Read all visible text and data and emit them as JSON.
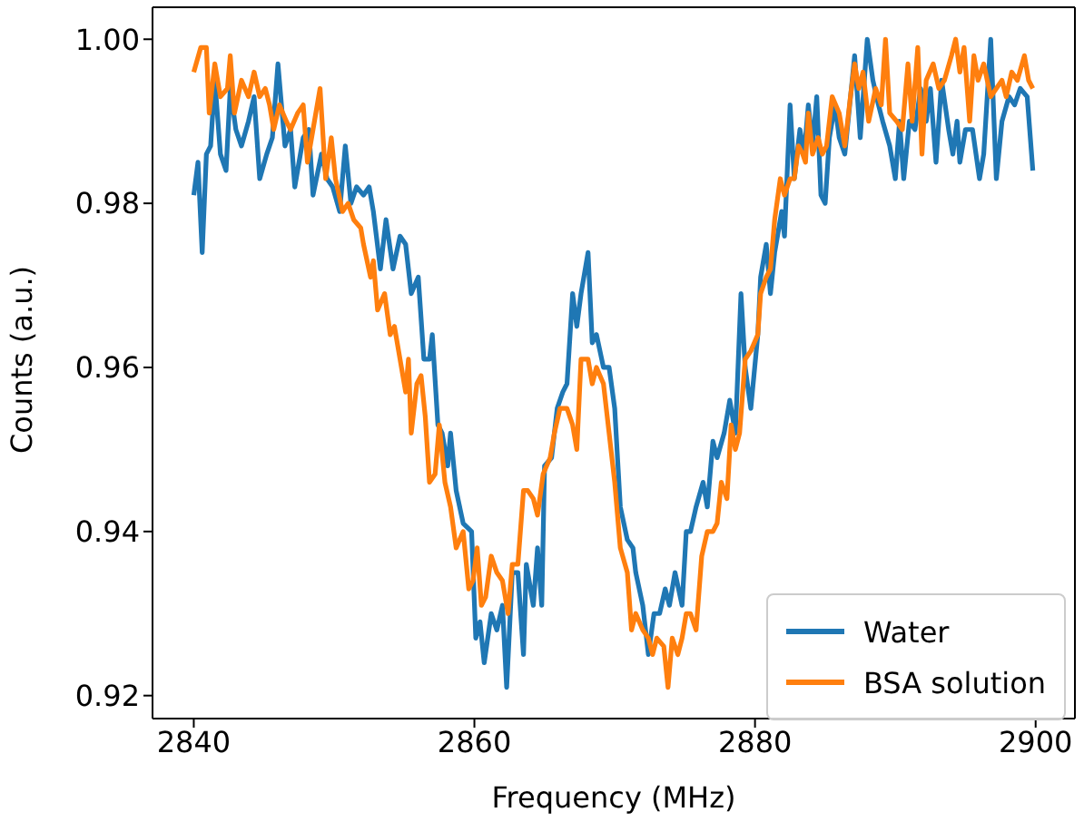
{
  "chart_data": {
    "type": "line",
    "xlabel": "Frequency (MHz)",
    "ylabel": "Counts (a.u.)",
    "xlim": [
      2837.06,
      2902.8
    ],
    "ylim": [
      0.9172,
      1.0039
    ],
    "xticks": [
      2840,
      2860,
      2880,
      2900
    ],
    "yticks": [
      0.92,
      0.94,
      0.96,
      0.98,
      {
        "value": 1,
        "label": "1.00"
      }
    ],
    "legend": "bottom right",
    "line_style": "solid",
    "marker": "none",
    "series": [
      {
        "name": "Water",
        "color": "#1f77b4",
        "x": [
          2840,
          2840.3,
          2840.6,
          2840.9,
          2841.2,
          2841.5,
          2841.9,
          2842.3,
          2842.6,
          2843.0,
          2843.4,
          2843.9,
          2844.3,
          2844.7,
          2845.2,
          2845.6,
          2846.0,
          2846.5,
          2846.9,
          2847.2,
          2847.8,
          2848.2,
          2848.5,
          2849.1,
          2849.5,
          2849.9,
          2850.4,
          2850.8,
          2851.2,
          2851.6,
          2852.1,
          2852.5,
          2852.8,
          2853.3,
          2853.7,
          2854.2,
          2854.7,
          2855.1,
          2855.5,
          2856.0,
          2856.4,
          2856.8,
          2857.0,
          2857.4,
          2857.7,
          2858.1,
          2858.3,
          2858.7,
          2859.2,
          2859.8,
          2860.1,
          2860.4,
          2860.7,
          2861.2,
          2861.6,
          2862.0,
          2862.3,
          2862.7,
          2863.1,
          2863.5,
          2863.7,
          2864.2,
          2864.5,
          2864.8,
          2865.0,
          2865.5,
          2865.9,
          2866.3,
          2866.6,
          2867.0,
          2867.3,
          2867.6,
          2868.1,
          2868.4,
          2868.7,
          2869.2,
          2869.6,
          2870.0,
          2870.4,
          2870.9,
          2871.3,
          2871.5,
          2872.0,
          2872.4,
          2872.8,
          2873.2,
          2873.6,
          2873.9,
          2874.3,
          2874.8,
          2875.1,
          2875.4,
          2875.8,
          2876.3,
          2876.6,
          2877.0,
          2877.3,
          2877.8,
          2878.2,
          2878.6,
          2879.0,
          2879.3,
          2879.7,
          2880.2,
          2880.4,
          2880.8,
          2881.1,
          2881.4,
          2881.9,
          2882.1,
          2882.5,
          2882.8,
          2883.2,
          2883.5,
          2883.8,
          2884.1,
          2884.4,
          2884.7,
          2885.0,
          2885.3,
          2885.7,
          2886.0,
          2886.4,
          2887.1,
          2887.5,
          2888.0,
          2888.4,
          2888.8,
          2889.1,
          2889.6,
          2890.0,
          2890.3,
          2890.6,
          2891.0,
          2891.4,
          2891.8,
          2892.2,
          2892.5,
          2892.9,
          2893.3,
          2893.8,
          2894.1,
          2894.4,
          2894.6,
          2895.0,
          2895.5,
          2896.0,
          2896.3,
          2896.8,
          2897.2,
          2897.6,
          2898.1,
          2898.5,
          2898.9,
          2899.4,
          2899.8
        ],
        "values": [
          0.981,
          0.985,
          0.974,
          0.986,
          0.987,
          0.995,
          0.986,
          0.984,
          0.994,
          0.989,
          0.987,
          0.99,
          0.993,
          0.983,
          0.986,
          0.988,
          0.997,
          0.987,
          0.989,
          0.982,
          0.988,
          0.989,
          0.981,
          0.986,
          0.983,
          0.982,
          0.979,
          0.987,
          0.98,
          0.982,
          0.981,
          0.982,
          0.979,
          0.972,
          0.978,
          0.972,
          0.976,
          0.975,
          0.969,
          0.971,
          0.961,
          0.961,
          0.964,
          0.953,
          0.952,
          0.948,
          0.952,
          0.945,
          0.941,
          0.94,
          0.927,
          0.929,
          0.924,
          0.93,
          0.928,
          0.931,
          0.921,
          0.935,
          0.935,
          0.925,
          0.936,
          0.931,
          0.938,
          0.931,
          0.948,
          0.949,
          0.955,
          0.957,
          0.958,
          0.969,
          0.965,
          0.969,
          0.974,
          0.963,
          0.964,
          0.96,
          0.96,
          0.955,
          0.943,
          0.939,
          0.938,
          0.935,
          0.931,
          0.925,
          0.93,
          0.93,
          0.933,
          0.931,
          0.935,
          0.931,
          0.94,
          0.94,
          0.943,
          0.946,
          0.943,
          0.951,
          0.949,
          0.952,
          0.956,
          0.952,
          0.969,
          0.96,
          0.955,
          0.964,
          0.971,
          0.975,
          0.969,
          0.974,
          0.979,
          0.976,
          0.992,
          0.983,
          0.989,
          0.986,
          0.992,
          0.987,
          0.993,
          0.981,
          0.98,
          0.988,
          0.992,
          0.988,
          0.986,
          0.998,
          0.988,
          1.0,
          0.995,
          0.992,
          0.99,
          0.987,
          0.983,
          0.99,
          0.983,
          0.99,
          0.989,
          0.994,
          0.99,
          0.994,
          0.985,
          0.995,
          0.989,
          0.986,
          0.99,
          0.985,
          0.989,
          0.989,
          0.983,
          0.986,
          1.0,
          0.983,
          0.99,
          0.993,
          0.992,
          0.994,
          0.993,
          0.984
        ]
      },
      {
        "name": "BSA solution",
        "color": "#ff7f0e",
        "x": [
          2840,
          2840.5,
          2840.9,
          2841.1,
          2841.5,
          2841.9,
          2842.4,
          2842.6,
          2842.9,
          2843.4,
          2843.9,
          2844.3,
          2844.7,
          2845.1,
          2845.4,
          2845.7,
          2846.1,
          2846.6,
          2846.9,
          2847.4,
          2847.8,
          2848.1,
          2848.5,
          2849.0,
          2849.4,
          2849.8,
          2850.1,
          2850.6,
          2851.0,
          2851.4,
          2851.9,
          2852.1,
          2852.6,
          2852.8,
          2853.1,
          2853.6,
          2854.0,
          2854.3,
          2854.7,
          2855.1,
          2855.3,
          2855.5,
          2855.9,
          2856.2,
          2856.5,
          2856.8,
          2857.2,
          2857.5,
          2857.9,
          2858.3,
          2858.7,
          2859.2,
          2859.6,
          2859.9,
          2860.2,
          2860.5,
          2860.8,
          2861.2,
          2861.6,
          2862.0,
          2862.4,
          2862.7,
          2863.1,
          2863.5,
          2863.8,
          2864.2,
          2864.5,
          2864.9,
          2865.4,
          2865.7,
          2866.1,
          2866.6,
          2867.0,
          2867.3,
          2867.6,
          2868.1,
          2868.4,
          2868.7,
          2869.2,
          2869.6,
          2870.0,
          2870.4,
          2870.9,
          2871.2,
          2871.5,
          2872.0,
          2872.4,
          2872.7,
          2873.0,
          2873.5,
          2873.8,
          2874.1,
          2874.5,
          2874.8,
          2875.1,
          2875.4,
          2875.8,
          2876.2,
          2876.6,
          2877.0,
          2877.3,
          2877.6,
          2878.0,
          2878.3,
          2878.6,
          2878.9,
          2879.3,
          2879.7,
          2880.2,
          2880.4,
          2880.8,
          2881.1,
          2881.4,
          2881.8,
          2882.1,
          2882.5,
          2882.8,
          2883.1,
          2883.4,
          2883.6,
          2883.8,
          2884.1,
          2884.5,
          2884.8,
          2885.1,
          2885.5,
          2886.0,
          2886.4,
          2886.8,
          2887.1,
          2887.4,
          2887.7,
          2888.1,
          2888.6,
          2889.0,
          2889.3,
          2889.6,
          2890.1,
          2890.5,
          2890.9,
          2891.2,
          2891.6,
          2891.9,
          2892.2,
          2892.7,
          2893.1,
          2893.5,
          2894.0,
          2894.3,
          2894.6,
          2894.9,
          2895.3,
          2895.6,
          2895.9,
          2896.3,
          2896.8,
          2897.2,
          2897.6,
          2897.9,
          2898.3,
          2898.7,
          2899.2,
          2899.5,
          2899.8
        ],
        "values": [
          0.996,
          0.999,
          0.999,
          0.991,
          0.997,
          0.993,
          0.994,
          0.998,
          0.991,
          0.995,
          0.993,
          0.996,
          0.993,
          0.994,
          0.992,
          0.989,
          0.992,
          0.99,
          0.989,
          0.991,
          0.992,
          0.985,
          0.989,
          0.994,
          0.983,
          0.988,
          0.983,
          0.979,
          0.98,
          0.978,
          0.977,
          0.975,
          0.971,
          0.973,
          0.967,
          0.969,
          0.964,
          0.965,
          0.961,
          0.957,
          0.961,
          0.952,
          0.958,
          0.959,
          0.954,
          0.946,
          0.947,
          0.953,
          0.946,
          0.943,
          0.938,
          0.94,
          0.933,
          0.934,
          0.938,
          0.931,
          0.932,
          0.937,
          0.935,
          0.934,
          0.93,
          0.936,
          0.936,
          0.945,
          0.945,
          0.944,
          0.942,
          0.947,
          0.949,
          0.952,
          0.955,
          0.955,
          0.953,
          0.95,
          0.961,
          0.961,
          0.958,
          0.96,
          0.958,
          0.952,
          0.946,
          0.938,
          0.935,
          0.928,
          0.93,
          0.928,
          0.927,
          0.925,
          0.927,
          0.926,
          0.921,
          0.927,
          0.925,
          0.927,
          0.93,
          0.93,
          0.928,
          0.937,
          0.94,
          0.94,
          0.941,
          0.946,
          0.944,
          0.953,
          0.95,
          0.952,
          0.961,
          0.962,
          0.964,
          0.969,
          0.971,
          0.972,
          0.978,
          0.983,
          0.981,
          0.983,
          0.983,
          0.987,
          0.986,
          0.985,
          0.991,
          0.986,
          0.988,
          0.986,
          0.987,
          0.993,
          0.991,
          0.987,
          0.993,
          0.997,
          0.994,
          0.996,
          0.99,
          0.994,
          0.992,
          1.0,
          0.991,
          0.99,
          0.989,
          0.997,
          0.99,
          0.999,
          0.986,
          0.995,
          0.997,
          0.994,
          0.995,
          0.998,
          1.0,
          0.996,
          0.999,
          0.99,
          0.998,
          0.995,
          0.997,
          0.993,
          0.994,
          0.995,
          0.993,
          0.996,
          0.995,
          0.998,
          0.995,
          0.994
        ]
      }
    ]
  }
}
